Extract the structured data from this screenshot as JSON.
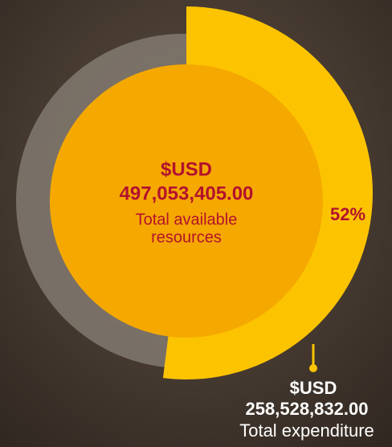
{
  "chart_data": {
    "type": "radial",
    "currency": "$USD",
    "center_amount": "497,053,405.00",
    "center_label": [
      "Total available",
      "resources"
    ],
    "values": [
      52
    ],
    "value_labels": [
      "52%"
    ],
    "color": "#fcc400",
    "outer_amount": "258,528,832.00",
    "outer_label": "Total expenditure"
  }
}
